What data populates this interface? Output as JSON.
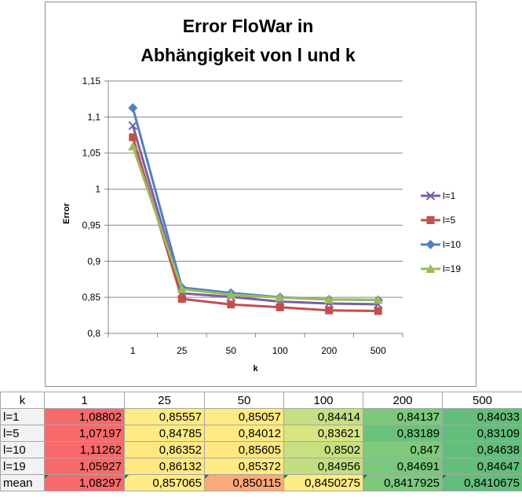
{
  "chart_data": {
    "type": "line",
    "title": [
      "Error FloWar in",
      "Abhängigkeit von l und k"
    ],
    "xlabel": "k",
    "ylabel": "Error",
    "categories": [
      "1",
      "25",
      "50",
      "100",
      "200",
      "500"
    ],
    "ylim": [
      0.8,
      1.15
    ],
    "yticks": [
      "1,15",
      "1,1",
      "1,05",
      "1",
      "0,95",
      "0,9",
      "0,85",
      "0,8"
    ],
    "ytick_values": [
      1.15,
      1.1,
      1.05,
      1.0,
      0.95,
      0.9,
      0.85,
      0.8
    ],
    "grid": true,
    "legend_position": "right",
    "series": [
      {
        "name": "l=1",
        "color": "#7b5ea7",
        "marker": "x",
        "values": [
          1.08802,
          0.85557,
          0.85057,
          0.84414,
          0.84137,
          0.84033
        ]
      },
      {
        "name": "l=5",
        "color": "#c0504d",
        "marker": "square",
        "values": [
          1.07197,
          0.84785,
          0.84012,
          0.83621,
          0.83189,
          0.83109
        ]
      },
      {
        "name": "l=10",
        "color": "#4f81bd",
        "marker": "diamond",
        "values": [
          1.11262,
          0.86352,
          0.85605,
          0.8502,
          0.847,
          0.84638
        ]
      },
      {
        "name": "l=19",
        "color": "#9bbb59",
        "marker": "triangle",
        "values": [
          1.05927,
          0.86132,
          0.85372,
          0.84956,
          0.84691,
          0.84647
        ]
      }
    ]
  },
  "table": {
    "header": [
      "k",
      "1",
      "25",
      "50",
      "100",
      "200",
      "500"
    ],
    "rows": [
      {
        "label": "l=1",
        "cells": [
          "1,08802",
          "0,85557",
          "0,85057",
          "0,84414",
          "0,84137",
          "0,84033"
        ]
      },
      {
        "label": "l=5",
        "cells": [
          "1,07197",
          "0,84785",
          "0,84012",
          "0,83621",
          "0,83189",
          "0,83109"
        ]
      },
      {
        "label": "l=10",
        "cells": [
          "1,11262",
          "0,86352",
          "0,85605",
          "0,8502",
          "0,847",
          "0,84638"
        ]
      },
      {
        "label": "l=19",
        "cells": [
          "1,05927",
          "0,86132",
          "0,85372",
          "0,84956",
          "0,84691",
          "0,84647"
        ]
      },
      {
        "label": "mean",
        "cells": [
          "1,08297",
          "0,857065",
          "0,850115",
          "0,8450275",
          "0,8417925",
          "0,8410675"
        ]
      }
    ],
    "cell_colors": [
      [
        "#f8696b",
        "#ffeb84",
        "#ffeb84",
        "#c5df81",
        "#7cc97b",
        "#63be7b"
      ],
      [
        "#f8696b",
        "#ffeb84",
        "#ffeb84",
        "#d9e582",
        "#6cc27b",
        "#63be7b"
      ],
      [
        "#f8696b",
        "#ffe784",
        "#ffe784",
        "#c9e081",
        "#7fca7c",
        "#63be7b"
      ],
      [
        "#f8696b",
        "#ffe784",
        "#ffeb84",
        "#c2de81",
        "#7ac87b",
        "#63be7b"
      ],
      [
        "#f8696b",
        "#ffeb84",
        "#fba978",
        "#fdeb84",
        "#7cc97b",
        "#63be7b"
      ]
    ]
  }
}
